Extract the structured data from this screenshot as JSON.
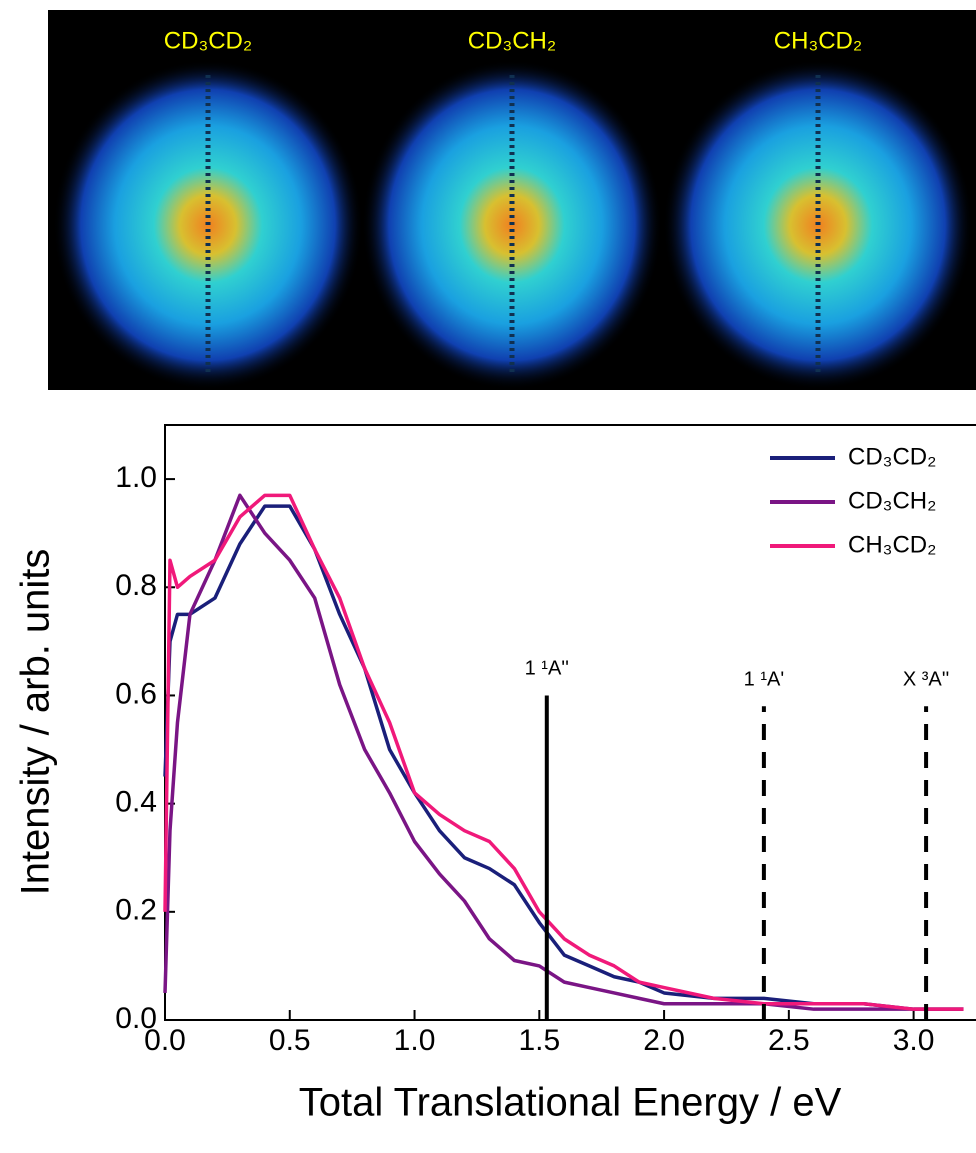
{
  "image_labels": [
    "CD₃CD₂",
    "CD₃CH₂",
    "CH₃CD₂"
  ],
  "chart_data": {
    "type": "line",
    "x_label": "Total Translational Energy / eV",
    "y_label": "Intensity / arb. units",
    "x": [
      0,
      0.02,
      0.05,
      0.1,
      0.2,
      0.3,
      0.4,
      0.5,
      0.6,
      0.7,
      0.8,
      0.9,
      1.0,
      1.1,
      1.2,
      1.3,
      1.4,
      1.5,
      1.6,
      1.7,
      1.8,
      1.9,
      2.0,
      2.2,
      2.4,
      2.6,
      2.8,
      3.0,
      3.2
    ],
    "series": [
      {
        "name": "CD₃CD₂",
        "color": "#1a1f7a",
        "values": [
          0.45,
          0.7,
          0.75,
          0.75,
          0.78,
          0.88,
          0.95,
          0.95,
          0.87,
          0.75,
          0.65,
          0.5,
          0.42,
          0.35,
          0.3,
          0.28,
          0.25,
          0.18,
          0.12,
          0.1,
          0.08,
          0.07,
          0.05,
          0.04,
          0.04,
          0.03,
          0.03,
          0.02,
          0.02
        ]
      },
      {
        "name": "CD₃CH₂",
        "color": "#7a1585",
        "values": [
          0.05,
          0.35,
          0.55,
          0.75,
          0.85,
          0.97,
          0.9,
          0.85,
          0.78,
          0.62,
          0.5,
          0.42,
          0.33,
          0.27,
          0.22,
          0.15,
          0.11,
          0.1,
          0.07,
          0.06,
          0.05,
          0.04,
          0.03,
          0.03,
          0.03,
          0.02,
          0.02,
          0.02,
          0.02
        ]
      },
      {
        "name": "CH₃CD₂",
        "color": "#f0197a",
        "values": [
          0.2,
          0.85,
          0.8,
          0.82,
          0.85,
          0.93,
          0.97,
          0.97,
          0.87,
          0.78,
          0.65,
          0.55,
          0.42,
          0.38,
          0.35,
          0.33,
          0.28,
          0.2,
          0.15,
          0.12,
          0.1,
          0.07,
          0.06,
          0.04,
          0.03,
          0.03,
          0.03,
          0.02,
          0.02
        ]
      }
    ],
    "markers": [
      {
        "x": 1.53,
        "top": 0.6,
        "label": "1 ¹A''",
        "style": "solid"
      },
      {
        "x": 2.4,
        "top": 0.58,
        "label": "1 ¹A'",
        "style": "dashed"
      },
      {
        "x": 3.05,
        "top": 0.58,
        "label": "X ³A''",
        "style": "dashed"
      }
    ],
    "xlim": [
      0,
      3.25
    ],
    "ylim": [
      0,
      1.1
    ],
    "xticks": [
      {
        "value": 0,
        "label": "0.0"
      },
      {
        "value": 0.5,
        "label": "0.5"
      },
      {
        "value": 1,
        "label": "1.0"
      },
      {
        "value": 1.5,
        "label": "1.5"
      },
      {
        "value": 2,
        "label": "2.0"
      },
      {
        "value": 2.5,
        "label": "2.5"
      },
      {
        "value": 3,
        "label": "3.0"
      }
    ],
    "yticks": [
      {
        "value": 0,
        "label": "0.0"
      },
      {
        "value": 0.2,
        "label": "0.2"
      },
      {
        "value": 0.4,
        "label": "0.4"
      },
      {
        "value": 0.6,
        "label": "0.6"
      },
      {
        "value": 0.8,
        "label": "0.8"
      },
      {
        "value": 1,
        "label": "1.0"
      }
    ],
    "legend": "top-right"
  }
}
